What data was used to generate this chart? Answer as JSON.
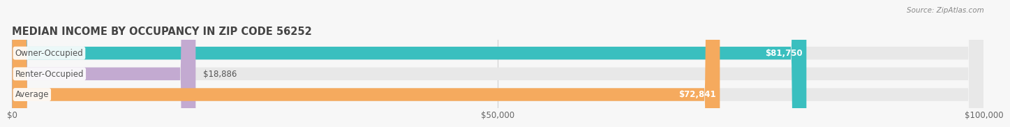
{
  "title": "MEDIAN INCOME BY OCCUPANCY IN ZIP CODE 56252",
  "source": "Source: ZipAtlas.com",
  "categories": [
    "Owner-Occupied",
    "Renter-Occupied",
    "Average"
  ],
  "values": [
    81750,
    18886,
    72841
  ],
  "bar_colors": [
    "#3abfbf",
    "#c3aad1",
    "#f5aa5e"
  ],
  "bar_bg_color": "#e8e8e8",
  "value_labels": [
    "$81,750",
    "$18,886",
    "$72,841"
  ],
  "value_label_inside": [
    true,
    false,
    true
  ],
  "xlim": [
    0,
    100000
  ],
  "xticks": [
    0,
    50000,
    100000
  ],
  "xticklabels": [
    "$0",
    "$50,000",
    "$100,000"
  ],
  "title_fontsize": 10.5,
  "tick_fontsize": 8.5,
  "bar_label_fontsize": 8.5,
  "category_fontsize": 8.5,
  "bg_color": "#f7f7f7",
  "bar_height": 0.62,
  "cat_label_color": "#555555",
  "value_label_color_inside": "white",
  "value_label_color_outside": "#555555",
  "grid_color": "#d0d0d0",
  "title_color": "#444444",
  "source_color": "#888888",
  "tick_color": "#666666"
}
